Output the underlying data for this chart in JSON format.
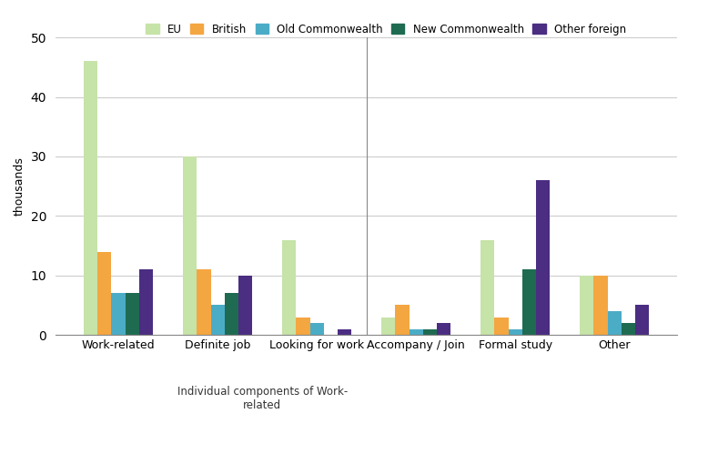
{
  "categories": [
    "Work-related",
    "Definite job",
    "Looking for work",
    "Accompany / Join",
    "Formal study",
    "Other"
  ],
  "series": {
    "EU": [
      46,
      30,
      16,
      3,
      16,
      10
    ],
    "British": [
      14,
      11,
      3,
      5,
      3,
      10
    ],
    "Old Commonwealth": [
      7,
      5,
      2,
      1,
      1,
      4
    ],
    "New Commonwealth": [
      7,
      7,
      0,
      1,
      11,
      2
    ],
    "Other foreign": [
      11,
      10,
      1,
      2,
      26,
      5
    ]
  },
  "colors": {
    "EU": "#c6e3a8",
    "British": "#f4a641",
    "Old Commonwealth": "#4bacc6",
    "New Commonwealth": "#1f6b52",
    "Other foreign": "#4b2d82"
  },
  "ylim": [
    0,
    50
  ],
  "yticks": [
    0,
    10,
    20,
    30,
    40,
    50
  ],
  "ylabel": "thousands",
  "annotation_text": "Individual components of Work-\nrelated",
  "bar_width": 0.14,
  "bg_color": "#ffffff",
  "grid_color": "#cccccc"
}
